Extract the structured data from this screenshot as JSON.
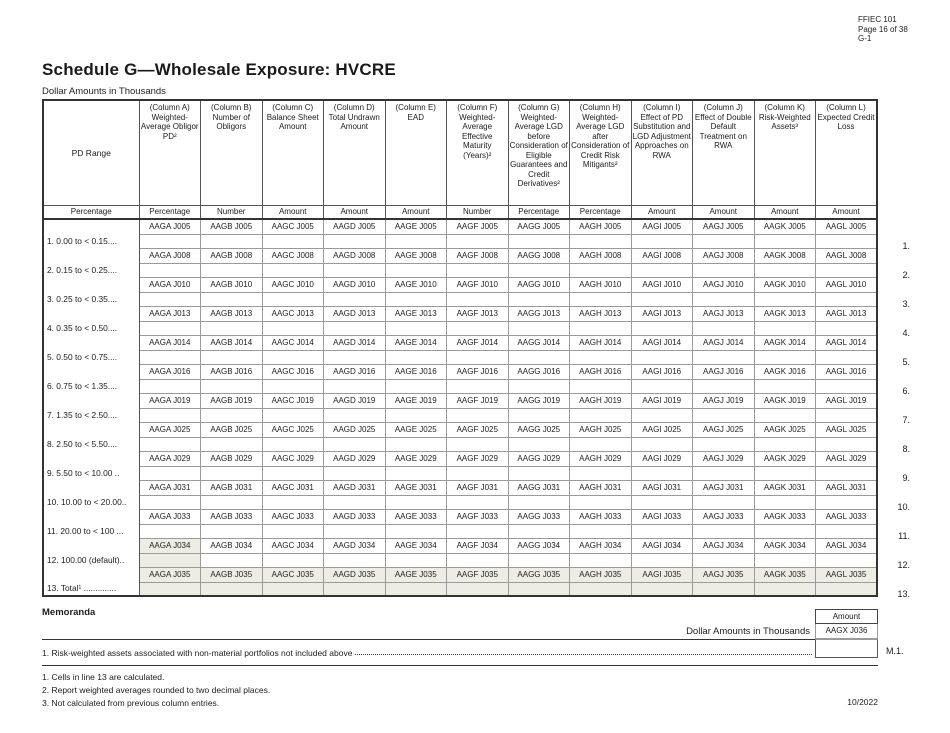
{
  "page_header": {
    "form": "FFIEC 101",
    "page": "Page 16 of 38",
    "section": "G-1"
  },
  "title": "Schedule G—Wholesale Exposure: HVCRE",
  "dollar_amounts_label": "Dollar Amounts in Thousands",
  "colors": {
    "shaded_cell": "#eeede3",
    "border_dark": "#333333",
    "border_light": "#9a9a9a"
  },
  "table": {
    "pd_range_header": "PD Range",
    "pd_range_subheader": "Percentage",
    "column_code_prefixes": [
      "AAGA",
      "AAGB",
      "AAGC",
      "AAGD",
      "AAGE",
      "AAGF",
      "AAGG",
      "AAGH",
      "AAGI",
      "AAGJ",
      "AAGK",
      "AAGL"
    ],
    "columns": [
      {
        "id": "A",
        "header": "(Column A) Weighted-Average Obligor PD²",
        "subheader": "Percentage"
      },
      {
        "id": "B",
        "header": "(Column B) Number of Obligors",
        "subheader": "Number"
      },
      {
        "id": "C",
        "header": "(Column C) Balance Sheet Amount",
        "subheader": "Amount"
      },
      {
        "id": "D",
        "header": "(Column D) Total Undrawn Amount",
        "subheader": "Amount"
      },
      {
        "id": "E",
        "header": "(Column E) EAD",
        "subheader": "Amount"
      },
      {
        "id": "F",
        "header": "(Column F) Weighted-Average Effective Maturity (Years)²",
        "subheader": "Number"
      },
      {
        "id": "G",
        "header": "(Column G) Weighted-Average LGD before Consideration of Eligible Guarantees and Credit Derivatives²",
        "subheader": "Percentage"
      },
      {
        "id": "H",
        "header": "(Column H) Weighted-Average LGD after Consideration of Credit Risk Mitigants²",
        "subheader": "Percentage"
      },
      {
        "id": "I",
        "header": "(Column I) Effect of PD Substitution and LGD Adjustment Approaches on RWA",
        "subheader": "Amount"
      },
      {
        "id": "J",
        "header": "(Column J) Effect of Double Default Treatment on RWA",
        "subheader": "Amount"
      },
      {
        "id": "K",
        "header": "(Column K) Risk-Weighted Assets³",
        "subheader": "Amount"
      },
      {
        "id": "L",
        "header": "(Column L) Expected Credit Loss",
        "subheader": "Amount"
      }
    ],
    "rows": [
      {
        "num": "1.",
        "label": "1. 0.00 to < 0.15....",
        "code": "J005",
        "shaded_columns": []
      },
      {
        "num": "2.",
        "label": "2. 0.15 to < 0.25....",
        "code": "J008",
        "shaded_columns": []
      },
      {
        "num": "3.",
        "label": "3. 0.25 to < 0.35....",
        "code": "J010",
        "shaded_columns": []
      },
      {
        "num": "4.",
        "label": "4. 0.35 to < 0.50....",
        "code": "J013",
        "shaded_columns": []
      },
      {
        "num": "5.",
        "label": "5. 0.50 to < 0.75....",
        "code": "J014",
        "shaded_columns": []
      },
      {
        "num": "6.",
        "label": "6. 0.75 to < 1.35....",
        "code": "J016",
        "shaded_columns": []
      },
      {
        "num": "7.",
        "label": "7. 1.35 to < 2.50....",
        "code": "J019",
        "shaded_columns": []
      },
      {
        "num": "8.",
        "label": "8. 2.50 to < 5.50....",
        "code": "J025",
        "shaded_columns": []
      },
      {
        "num": "9.",
        "label": "9. 5.50 to < 10.00 ..",
        "code": "J029",
        "shaded_columns": []
      },
      {
        "num": "10.",
        "label": "10. 10.00 to < 20.00..",
        "code": "J031",
        "shaded_columns": []
      },
      {
        "num": "11.",
        "label": "11. 20.00 to < 100 ...",
        "code": "J033",
        "shaded_columns": []
      },
      {
        "num": "12.",
        "label": "12. 100.00 (default)..",
        "code": "J034",
        "shaded_columns": [
          "A"
        ]
      },
      {
        "num": "13.",
        "label": "13. Total¹ ..............",
        "code": "J035",
        "shaded_columns": [
          "A",
          "B",
          "C",
          "D",
          "E",
          "F",
          "G",
          "H",
          "I",
          "J",
          "K",
          "L"
        ]
      }
    ]
  },
  "memoranda": {
    "heading": "Memoranda",
    "dollar_amounts_label": "Dollar Amounts in Thousands",
    "amount_header": "Amount",
    "code": "AAGX J036",
    "row_label": "1. Risk-weighted assets associated with non-material portfolios not included above",
    "row_num": "M.1."
  },
  "footnotes": [
    "1. Cells in line 13 are calculated.",
    "2. Report weighted averages rounded to two decimal places.",
    "3. Not calculated from previous column entries."
  ],
  "revision_date": "10/2022"
}
